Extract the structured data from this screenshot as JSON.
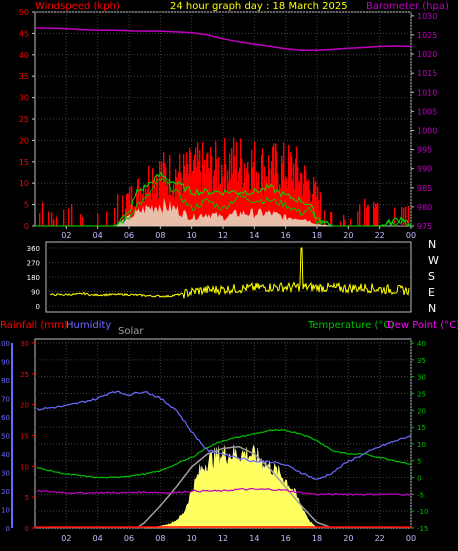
{
  "header": {
    "title": "24 hour graph day : 18 March 2025",
    "left_label": "Windspeed (kph)",
    "right_label": "Barometer (hpa)"
  },
  "direction_labels": [
    "N",
    "W",
    "S",
    "E",
    "N"
  ],
  "bottom_header": {
    "rainfall": "Rainfall (mm)",
    "humidity": "Humidity",
    "solar": "Solar",
    "temperature": "Temperature (°C)",
    "dewpoint": "Dew Point (°C)"
  },
  "colors": {
    "background": "#000000",
    "frame": "#c0c0c0",
    "grid": "#404040",
    "windspeed": "#ff0000",
    "barometer": "#c000c0",
    "gust": "#00c000",
    "avg_wind": "#e0ffe0",
    "direction": "#ffff00",
    "rainfall": "#ff0000",
    "humidity": "#6a6aff",
    "solar": "#ffff60",
    "solar_curve": "#a0a0a0",
    "temperature": "#00c000",
    "dewpoint": "#c000c0",
    "title": "#ffff00"
  },
  "chart_data": [
    {
      "type": "area",
      "name": "wind-barometer",
      "x_ticks": [
        "02",
        "04",
        "06",
        "08",
        "10",
        "12",
        "14",
        "16",
        "18",
        "20",
        "22",
        "00"
      ],
      "y_left_ticks": [
        0,
        5,
        10,
        15,
        20,
        25,
        30,
        35,
        40,
        45,
        50
      ],
      "y_left_range": [
        0,
        50
      ],
      "y_right_ticks": [
        975,
        980,
        985,
        990,
        995,
        1000,
        1005,
        1010,
        1015,
        1020,
        1025,
        1030
      ],
      "y_right_range": [
        975,
        1031
      ],
      "x_range_hours": [
        0,
        24
      ],
      "series": [
        {
          "name": "Barometer (hpa)",
          "kind": "line",
          "axis": "right",
          "x": [
            0,
            1,
            2,
            3,
            4,
            5,
            6,
            7,
            8,
            9,
            10,
            11,
            12,
            13,
            14,
            15,
            16,
            17,
            18,
            19,
            20,
            21,
            22,
            23,
            24
          ],
          "values": [
            1026.8,
            1026.8,
            1026.6,
            1026.4,
            1026.2,
            1026.2,
            1026.1,
            1026.0,
            1026.0,
            1025.8,
            1025.6,
            1025.0,
            1024.0,
            1023.2,
            1022.6,
            1022.0,
            1021.4,
            1021.0,
            1021.0,
            1021.2,
            1021.5,
            1021.7,
            1022.0,
            1022.1,
            1022.0
          ]
        },
        {
          "name": "Windspeed (kph)",
          "kind": "bars",
          "axis": "left",
          "x": [
            0.5,
            1.5,
            2.5,
            3.5,
            4.5,
            5.5,
            6.5,
            7.5,
            8.5,
            9.5,
            10.5,
            11.5,
            12.5,
            13.5,
            14.5,
            15.5,
            16.5,
            17.5,
            18.5,
            19.5,
            20.5,
            21.5,
            22.5,
            23.5
          ],
          "values": [
            6,
            3,
            6,
            5,
            6,
            8,
            12,
            18,
            18,
            18,
            20,
            20,
            22,
            22,
            20,
            20,
            20,
            14,
            6,
            3,
            6,
            10,
            6,
            7
          ]
        },
        {
          "name": "Gust",
          "kind": "line",
          "axis": "left",
          "x": [
            0,
            5,
            6,
            6.5,
            7,
            8,
            9,
            10,
            11,
            12,
            13,
            14,
            15,
            16,
            17,
            17.5,
            18,
            18.5,
            19,
            22,
            23.5,
            24
          ],
          "values": [
            0,
            0,
            2,
            5,
            6,
            11,
            8,
            4,
            6,
            4,
            7,
            6,
            6,
            5,
            3,
            4,
            1,
            0.5,
            0,
            0,
            1,
            0
          ],
          "values_upper": [
            0,
            0,
            3,
            8,
            9,
            12,
            10,
            8,
            8,
            8,
            8,
            8,
            9,
            7,
            6,
            5,
            2,
            1,
            0,
            0,
            2,
            0
          ]
        },
        {
          "name": "Average wind",
          "kind": "area",
          "axis": "left",
          "x": [
            0,
            5,
            6,
            7,
            8,
            9,
            10,
            11,
            12,
            13,
            14,
            15,
            16,
            17,
            18,
            19,
            24
          ],
          "values": [
            0,
            0,
            2,
            4,
            5,
            4,
            2,
            3,
            2,
            3,
            3,
            3,
            2,
            2,
            0.5,
            0,
            0
          ]
        }
      ]
    },
    {
      "type": "line",
      "name": "wind-direction",
      "y_ticks": [
        0,
        90,
        180,
        270,
        360
      ],
      "y_range": [
        0,
        360
      ],
      "x_range_hours": [
        0,
        24
      ],
      "series": [
        {
          "name": "Direction",
          "x": [
            0,
            1,
            2,
            2.5,
            3,
            4,
            5,
            6,
            7,
            8,
            9,
            10,
            11,
            12,
            13,
            14,
            15,
            16,
            16.7,
            16.8,
            16.9,
            17,
            18,
            19,
            20,
            21,
            22,
            23,
            24
          ],
          "values": [
            70,
            70,
            72,
            78,
            68,
            70,
            72,
            68,
            62,
            60,
            75,
            95,
            100,
            105,
            110,
            115,
            118,
            115,
            120,
            360,
            110,
            118,
            115,
            112,
            110,
            115,
            105,
            100,
            95
          ]
        }
      ]
    },
    {
      "type": "line",
      "name": "temp-humidity-solar",
      "x_range_hours": [
        0,
        24
      ],
      "humidity_ticks": [
        0,
        10,
        20,
        30,
        40,
        50,
        60,
        70,
        80,
        90,
        100
      ],
      "humidity_range": [
        0,
        100
      ],
      "rainfall_ticks": [
        0,
        5,
        10,
        15,
        20,
        25,
        30
      ],
      "rainfall_range": [
        0,
        30
      ],
      "temperature_ticks": [
        -15,
        -10,
        -5,
        0,
        5,
        10,
        15,
        20,
        25,
        30,
        35,
        40
      ],
      "temperature_range": [
        -15,
        40
      ],
      "series": [
        {
          "name": "Humidity",
          "axis": "humidity",
          "x": [
            0,
            1,
            2,
            3,
            4,
            5,
            6,
            7,
            8,
            9,
            10,
            11,
            12,
            13,
            14,
            15,
            16,
            17,
            18,
            19,
            20,
            21,
            22,
            23,
            24
          ],
          "values": [
            64,
            65,
            66,
            68,
            70,
            74,
            72,
            74,
            70,
            64,
            52,
            42,
            40,
            38,
            36,
            36,
            34,
            30,
            26,
            30,
            36,
            40,
            44,
            47,
            50
          ]
        },
        {
          "name": "Temperature (°C)",
          "axis": "temperature",
          "x": [
            0,
            1,
            2,
            3,
            4,
            5,
            6,
            7,
            8,
            9,
            10,
            11,
            12,
            13,
            14,
            15,
            16,
            17,
            18,
            19,
            20,
            21,
            22,
            23,
            24
          ],
          "values": [
            3,
            2,
            1,
            0.5,
            0,
            0,
            0.5,
            1,
            2,
            4,
            6,
            9,
            11,
            12,
            13,
            14,
            14,
            13,
            11,
            8,
            7,
            7,
            6,
            5,
            4
          ]
        },
        {
          "name": "Dew Point (°C)",
          "axis": "temperature",
          "x": [
            0,
            1,
            2,
            3,
            4,
            5,
            6,
            7,
            8,
            9,
            10,
            11,
            12,
            13,
            14,
            15,
            16,
            17,
            18,
            19,
            20,
            21,
            22,
            23,
            24
          ],
          "values": [
            -4,
            -4.2,
            -4.5,
            -4.6,
            -4.5,
            -4.5,
            -4.5,
            -4.3,
            -4.5,
            -4.5,
            -4.0,
            -4.0,
            -4.0,
            -3.5,
            -3.5,
            -3.5,
            -3.8,
            -4.5,
            -5.0,
            -5.0,
            -5.0,
            -5.0,
            -5.0,
            -5.0,
            -5.0
          ]
        },
        {
          "name": "Solar",
          "axis": "humidity",
          "kind": "area",
          "x": [
            7,
            8,
            8.5,
            9,
            9.5,
            10,
            10.5,
            11,
            11.5,
            12,
            12.5,
            13,
            13.5,
            14,
            14.5,
            15,
            15.5,
            16,
            16.5,
            17,
            17.5,
            18
          ],
          "values": [
            0,
            1,
            2,
            4,
            8,
            20,
            30,
            36,
            38,
            40,
            40,
            40,
            40,
            39,
            36,
            33,
            30,
            26,
            20,
            12,
            4,
            0
          ]
        },
        {
          "name": "Solar curve",
          "axis": "humidity",
          "x": [
            6.5,
            7,
            8,
            9,
            10,
            11,
            12,
            13,
            14,
            15,
            16,
            17,
            18,
            19
          ],
          "values": [
            0,
            3,
            12,
            22,
            33,
            40,
            43,
            44,
            40,
            32,
            22,
            12,
            3,
            0
          ]
        }
      ]
    }
  ]
}
